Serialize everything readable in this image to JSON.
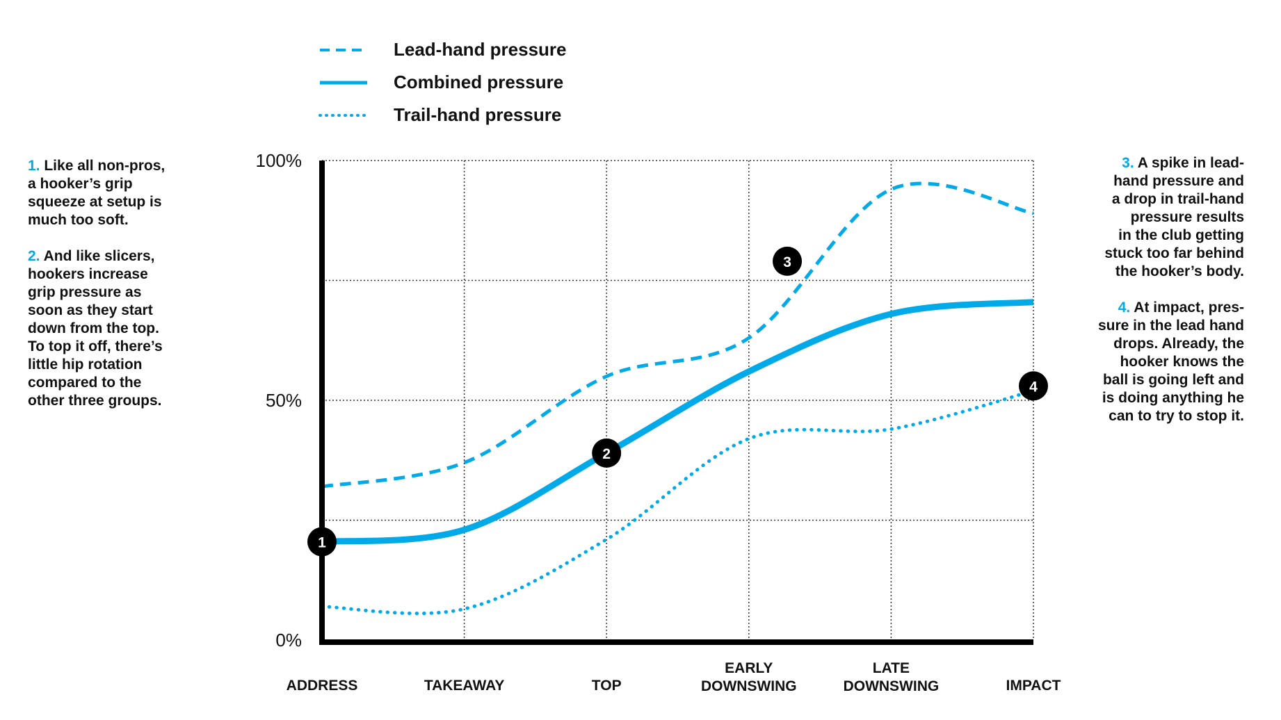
{
  "legend": [
    {
      "label": "Lead-hand pressure",
      "style": "dashed"
    },
    {
      "label": "Combined pressure",
      "style": "solid"
    },
    {
      "label": "Trail-hand pressure",
      "style": "dotted"
    }
  ],
  "notes_left": [
    {
      "num": "1.",
      "lines": [
        "Like all non-pros,",
        "a hooker’s grip",
        "squeeze at setup is",
        "much too soft."
      ]
    },
    {
      "num": "2.",
      "lines": [
        "And like slicers,",
        "hookers increase",
        "grip pressure as",
        "soon as they start",
        "down from the top.",
        "To top it off, there’s",
        "little hip rotation",
        "compared to the",
        "other three groups."
      ]
    }
  ],
  "notes_right": [
    {
      "num": "3.",
      "lines": [
        "A spike in lead-",
        "hand pressure and",
        "a drop in trail-hand",
        "pressure results",
        "in the club getting",
        "stuck too far behind",
        "the hooker’s body."
      ]
    },
    {
      "num": "4.",
      "lines": [
        "At impact, pres-",
        "sure in the lead hand",
        "drops. Already, the",
        "hooker knows the",
        "ball is going left and",
        "is doing anything he",
        "can to try to stop it."
      ]
    }
  ],
  "chart_data": {
    "type": "line",
    "categories": [
      [
        "ADDRESS"
      ],
      [
        "TAKEAWAY"
      ],
      [
        "TOP"
      ],
      [
        "EARLY",
        "DOWNSWING"
      ],
      [
        "LATE",
        "DOWNSWING"
      ],
      [
        "IMPACT"
      ]
    ],
    "ylim": [
      0,
      100
    ],
    "yticks": [
      {
        "value": 0,
        "label": "0%"
      },
      {
        "value": 50,
        "label": "50%"
      },
      {
        "value": 100,
        "label": "100%"
      }
    ],
    "ygrid": [
      25,
      50,
      75,
      100
    ],
    "grid": true,
    "color": "#00a9e8",
    "series": [
      {
        "name": "Lead-hand pressure",
        "style": "dashed",
        "values": [
          32,
          37,
          55,
          63,
          94,
          89
        ]
      },
      {
        "name": "Combined pressure",
        "style": "solid",
        "values": [
          20.5,
          23,
          39,
          56,
          68,
          70.5
        ]
      },
      {
        "name": "Trail-hand pressure",
        "style": "dotted",
        "values": [
          7,
          6.5,
          21,
          42,
          44,
          52
        ]
      }
    ],
    "markers": [
      {
        "label": "1",
        "x": 0,
        "y": 20.5
      },
      {
        "label": "2",
        "x": 2,
        "y": 39
      },
      {
        "label": "3",
        "x": 3.27,
        "y": 79
      },
      {
        "label": "4",
        "x": 5,
        "y": 53
      }
    ]
  }
}
